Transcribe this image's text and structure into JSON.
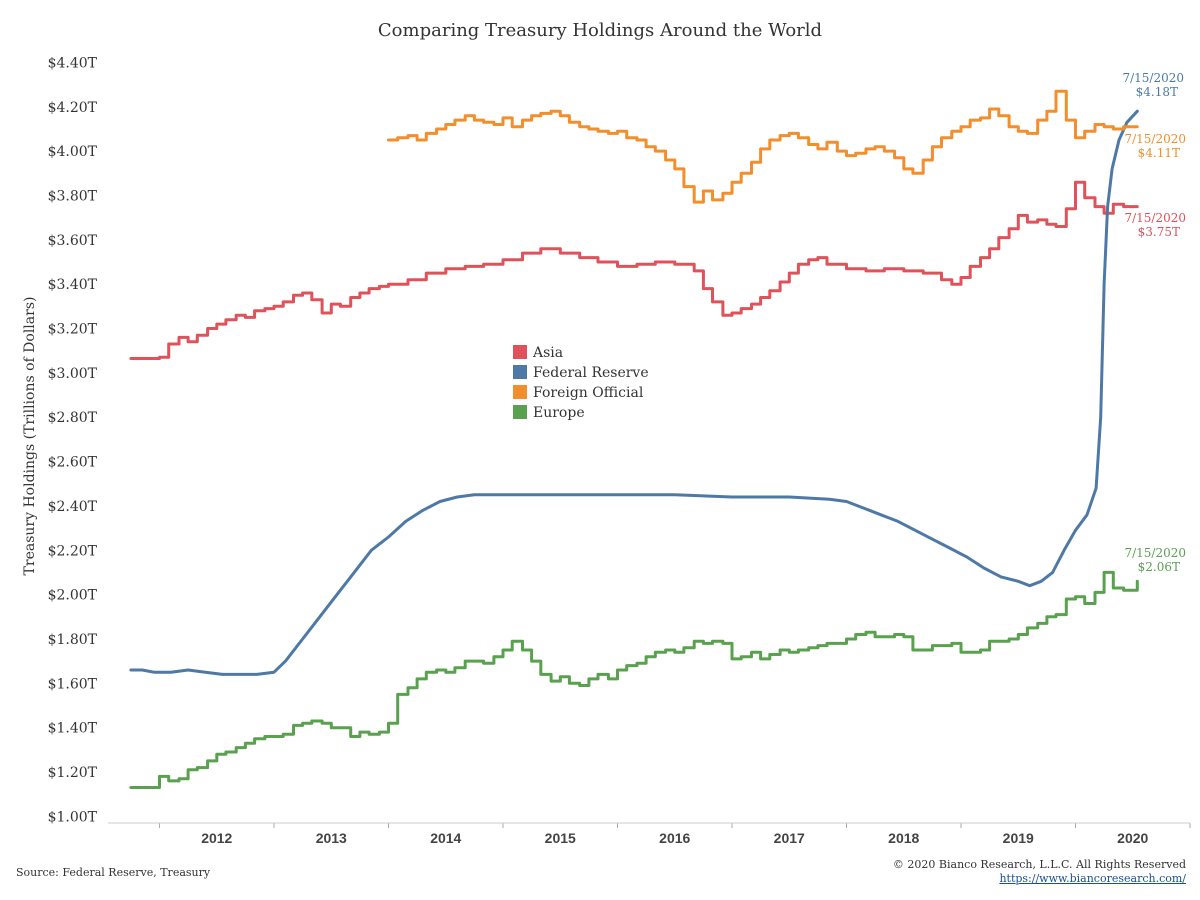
{
  "colors": {
    "asia": "#e0525a",
    "federal_reserve": "#4e79a7",
    "foreign_official": "#f28e2b",
    "europe": "#59a14f"
  },
  "footer": {
    "source": "Source: Federal Reserve, Treasury",
    "copyright": "© 2020 Bianco Research, L.L.C. All Rights Reserved",
    "url": "https://www.biancoresearch.com/"
  },
  "chart_data": {
    "type": "line",
    "title": "Comparing Treasury Holdings Around the World",
    "xlabel": "",
    "ylabel": "Treasury Holdings (Trillions of Dollars)",
    "xlim": [
      2011.55,
      2021.0
    ],
    "ylim": [
      0.97,
      4.42
    ],
    "x_ticks": [
      2012,
      2013,
      2014,
      2015,
      2016,
      2017,
      2018,
      2019,
      2020
    ],
    "x_tick_labels": [
      "2012",
      "2013",
      "2014",
      "2015",
      "2016",
      "2017",
      "2018",
      "2019",
      "2020"
    ],
    "y_ticks": [
      1.0,
      1.2,
      1.4,
      1.6,
      1.8,
      2.0,
      2.2,
      2.4,
      2.6,
      2.8,
      3.0,
      3.2,
      3.4,
      3.6,
      3.8,
      4.0,
      4.2,
      4.4
    ],
    "y_tick_labels": [
      "$1.00T",
      "$1.20T",
      "$1.40T",
      "$1.60T",
      "$1.80T",
      "$2.00T",
      "$2.20T",
      "$2.40T",
      "$2.60T",
      "$2.80T",
      "$3.00T",
      "$3.20T",
      "$3.40T",
      "$3.60T",
      "$3.80T",
      "$4.00T",
      "$4.20T",
      "$4.40T"
    ],
    "legend": {
      "placement": "center-left",
      "entries": [
        "Asia",
        "Federal Reserve",
        "Foreign Official",
        "Europe"
      ]
    },
    "grid": false,
    "series": [
      {
        "name": "Asia",
        "color_key": "asia",
        "step": true,
        "x": [
          2011.75,
          2012.0,
          2012.08,
          2012.17,
          2012.25,
          2012.33,
          2012.42,
          2012.5,
          2012.58,
          2012.67,
          2012.75,
          2012.83,
          2012.92,
          2013.0,
          2013.08,
          2013.17,
          2013.25,
          2013.33,
          2013.42,
          2013.5,
          2013.58,
          2013.67,
          2013.75,
          2013.83,
          2013.92,
          2014.0,
          2014.17,
          2014.33,
          2014.5,
          2014.67,
          2014.83,
          2015.0,
          2015.17,
          2015.33,
          2015.5,
          2015.67,
          2015.83,
          2016.0,
          2016.17,
          2016.33,
          2016.5,
          2016.67,
          2016.75,
          2016.83,
          2016.92,
          2017.0,
          2017.08,
          2017.17,
          2017.25,
          2017.33,
          2017.42,
          2017.5,
          2017.58,
          2017.67,
          2017.75,
          2017.83,
          2018.0,
          2018.17,
          2018.33,
          2018.5,
          2018.67,
          2018.83,
          2018.92,
          2019.0,
          2019.08,
          2019.17,
          2019.25,
          2019.33,
          2019.42,
          2019.5,
          2019.58,
          2019.67,
          2019.75,
          2019.83,
          2019.92,
          2020.0,
          2020.08,
          2020.17,
          2020.25,
          2020.33,
          2020.42,
          2020.54
        ],
        "y": [
          3.065,
          3.07,
          3.13,
          3.16,
          3.14,
          3.17,
          3.2,
          3.22,
          3.24,
          3.26,
          3.25,
          3.28,
          3.29,
          3.3,
          3.32,
          3.35,
          3.36,
          3.33,
          3.27,
          3.31,
          3.3,
          3.34,
          3.36,
          3.38,
          3.39,
          3.4,
          3.42,
          3.45,
          3.47,
          3.48,
          3.49,
          3.51,
          3.54,
          3.56,
          3.54,
          3.52,
          3.5,
          3.48,
          3.49,
          3.5,
          3.49,
          3.46,
          3.38,
          3.32,
          3.26,
          3.27,
          3.29,
          3.31,
          3.34,
          3.37,
          3.41,
          3.45,
          3.49,
          3.51,
          3.52,
          3.49,
          3.47,
          3.46,
          3.47,
          3.46,
          3.45,
          3.42,
          3.4,
          3.43,
          3.48,
          3.52,
          3.56,
          3.61,
          3.65,
          3.71,
          3.68,
          3.69,
          3.67,
          3.66,
          3.74,
          3.86,
          3.79,
          3.75,
          3.72,
          3.76,
          3.75,
          3.75
        ]
      },
      {
        "name": "Federal Reserve",
        "color_key": "federal_reserve",
        "step": false,
        "x": [
          2011.75,
          2011.85,
          2011.95,
          2012.1,
          2012.25,
          2012.4,
          2012.55,
          2012.7,
          2012.85,
          2013.0,
          2013.1,
          2013.25,
          2013.4,
          2013.55,
          2013.7,
          2013.85,
          2014.0,
          2014.15,
          2014.3,
          2014.45,
          2014.6,
          2014.75,
          2014.85,
          2015.0,
          2015.5,
          2016.0,
          2016.5,
          2017.0,
          2017.5,
          2017.85,
          2018.0,
          2018.15,
          2018.3,
          2018.45,
          2018.6,
          2018.75,
          2018.9,
          2019.05,
          2019.2,
          2019.35,
          2019.5,
          2019.6,
          2019.7,
          2019.8,
          2019.9,
          2020.0,
          2020.1,
          2020.18,
          2020.22,
          2020.25,
          2020.28,
          2020.32,
          2020.38,
          2020.45,
          2020.54
        ],
        "y": [
          1.66,
          1.66,
          1.65,
          1.65,
          1.66,
          1.65,
          1.64,
          1.64,
          1.64,
          1.65,
          1.7,
          1.8,
          1.9,
          2.0,
          2.1,
          2.2,
          2.26,
          2.33,
          2.38,
          2.42,
          2.44,
          2.45,
          2.45,
          2.45,
          2.45,
          2.45,
          2.45,
          2.44,
          2.44,
          2.43,
          2.42,
          2.39,
          2.36,
          2.33,
          2.29,
          2.25,
          2.21,
          2.17,
          2.12,
          2.08,
          2.06,
          2.04,
          2.06,
          2.1,
          2.2,
          2.29,
          2.36,
          2.48,
          2.8,
          3.4,
          3.75,
          3.92,
          4.05,
          4.13,
          4.18
        ]
      },
      {
        "name": "Foreign Official",
        "color_key": "foreign_official",
        "step": true,
        "x": [
          2014.0,
          2014.08,
          2014.17,
          2014.25,
          2014.33,
          2014.42,
          2014.5,
          2014.58,
          2014.67,
          2014.75,
          2014.83,
          2014.92,
          2015.0,
          2015.08,
          2015.17,
          2015.25,
          2015.33,
          2015.42,
          2015.5,
          2015.58,
          2015.67,
          2015.75,
          2015.83,
          2015.92,
          2016.0,
          2016.08,
          2016.17,
          2016.25,
          2016.33,
          2016.42,
          2016.5,
          2016.58,
          2016.67,
          2016.75,
          2016.83,
          2016.92,
          2017.0,
          2017.08,
          2017.17,
          2017.25,
          2017.33,
          2017.42,
          2017.5,
          2017.58,
          2017.67,
          2017.75,
          2017.83,
          2017.92,
          2018.0,
          2018.08,
          2018.17,
          2018.25,
          2018.33,
          2018.42,
          2018.5,
          2018.58,
          2018.67,
          2018.75,
          2018.83,
          2018.92,
          2019.0,
          2019.08,
          2019.17,
          2019.25,
          2019.33,
          2019.42,
          2019.5,
          2019.58,
          2019.67,
          2019.75,
          2019.83,
          2019.92,
          2020.0,
          2020.08,
          2020.17,
          2020.25,
          2020.33,
          2020.42,
          2020.54
        ],
        "y": [
          4.05,
          4.06,
          4.07,
          4.05,
          4.08,
          4.1,
          4.12,
          4.14,
          4.16,
          4.14,
          4.13,
          4.12,
          4.15,
          4.11,
          4.14,
          4.16,
          4.17,
          4.18,
          4.16,
          4.13,
          4.11,
          4.1,
          4.09,
          4.08,
          4.09,
          4.06,
          4.05,
          4.02,
          4.0,
          3.96,
          3.92,
          3.84,
          3.77,
          3.82,
          3.78,
          3.81,
          3.86,
          3.9,
          3.95,
          4.01,
          4.05,
          4.07,
          4.08,
          4.06,
          4.03,
          4.01,
          4.04,
          4.0,
          3.98,
          3.99,
          4.01,
          4.02,
          4.0,
          3.97,
          3.92,
          3.9,
          3.96,
          4.02,
          4.06,
          4.09,
          4.11,
          4.14,
          4.15,
          4.19,
          4.16,
          4.11,
          4.09,
          4.08,
          4.14,
          4.18,
          4.27,
          4.14,
          4.06,
          4.09,
          4.12,
          4.11,
          4.1,
          4.11,
          4.11
        ]
      },
      {
        "name": "Europe",
        "color_key": "europe",
        "step": true,
        "x": [
          2011.75,
          2012.0,
          2012.08,
          2012.17,
          2012.25,
          2012.33,
          2012.42,
          2012.5,
          2012.58,
          2012.67,
          2012.75,
          2012.83,
          2012.92,
          2013.0,
          2013.08,
          2013.17,
          2013.25,
          2013.33,
          2013.42,
          2013.5,
          2013.58,
          2013.67,
          2013.75,
          2013.83,
          2013.92,
          2014.0,
          2014.08,
          2014.17,
          2014.25,
          2014.33,
          2014.42,
          2014.5,
          2014.58,
          2014.67,
          2014.75,
          2014.83,
          2014.92,
          2015.0,
          2015.08,
          2015.17,
          2015.25,
          2015.33,
          2015.42,
          2015.5,
          2015.58,
          2015.67,
          2015.75,
          2015.83,
          2015.92,
          2016.0,
          2016.08,
          2016.17,
          2016.25,
          2016.33,
          2016.42,
          2016.5,
          2016.58,
          2016.67,
          2016.75,
          2016.83,
          2016.92,
          2017.0,
          2017.08,
          2017.17,
          2017.25,
          2017.33,
          2017.42,
          2017.5,
          2017.58,
          2017.67,
          2017.75,
          2017.83,
          2017.92,
          2018.0,
          2018.08,
          2018.17,
          2018.25,
          2018.33,
          2018.42,
          2018.5,
          2018.58,
          2018.67,
          2018.75,
          2018.83,
          2018.92,
          2019.0,
          2019.08,
          2019.17,
          2019.25,
          2019.33,
          2019.42,
          2019.5,
          2019.58,
          2019.67,
          2019.75,
          2019.83,
          2019.92,
          2020.0,
          2020.08,
          2020.17,
          2020.25,
          2020.33,
          2020.42,
          2020.54
        ],
        "y": [
          1.13,
          1.18,
          1.16,
          1.17,
          1.21,
          1.22,
          1.25,
          1.28,
          1.29,
          1.31,
          1.33,
          1.35,
          1.36,
          1.36,
          1.37,
          1.41,
          1.42,
          1.43,
          1.42,
          1.4,
          1.4,
          1.36,
          1.38,
          1.37,
          1.38,
          1.42,
          1.55,
          1.58,
          1.62,
          1.65,
          1.66,
          1.65,
          1.67,
          1.7,
          1.7,
          1.69,
          1.72,
          1.75,
          1.79,
          1.75,
          1.7,
          1.64,
          1.61,
          1.63,
          1.6,
          1.59,
          1.62,
          1.64,
          1.62,
          1.66,
          1.68,
          1.69,
          1.72,
          1.74,
          1.75,
          1.74,
          1.76,
          1.79,
          1.78,
          1.79,
          1.78,
          1.71,
          1.72,
          1.74,
          1.71,
          1.73,
          1.75,
          1.74,
          1.75,
          1.76,
          1.77,
          1.78,
          1.78,
          1.8,
          1.82,
          1.83,
          1.81,
          1.81,
          1.82,
          1.81,
          1.75,
          1.75,
          1.77,
          1.77,
          1.78,
          1.74,
          1.74,
          1.75,
          1.79,
          1.79,
          1.8,
          1.82,
          1.85,
          1.87,
          1.9,
          1.91,
          1.98,
          1.99,
          1.96,
          2.01,
          2.1,
          2.03,
          2.02,
          2.06
        ]
      }
    ],
    "annotations": [
      {
        "series": "Federal Reserve",
        "color_key": "federal_reserve",
        "x": 2020.54,
        "y": 4.18,
        "date": "7/15/2020",
        "value": "$4.18T"
      },
      {
        "series": "Foreign Official",
        "color_key": "foreign_official",
        "x": 2020.54,
        "y": 4.11,
        "date": "7/15/2020",
        "value": "$4.11T"
      },
      {
        "series": "Asia",
        "color_key": "asia",
        "x": 2020.54,
        "y": 3.75,
        "date": "7/15/2020",
        "value": "$3.75T"
      },
      {
        "series": "Europe",
        "color_key": "europe",
        "x": 2020.54,
        "y": 2.06,
        "date": "7/15/2020",
        "value": "$2.06T"
      }
    ]
  }
}
